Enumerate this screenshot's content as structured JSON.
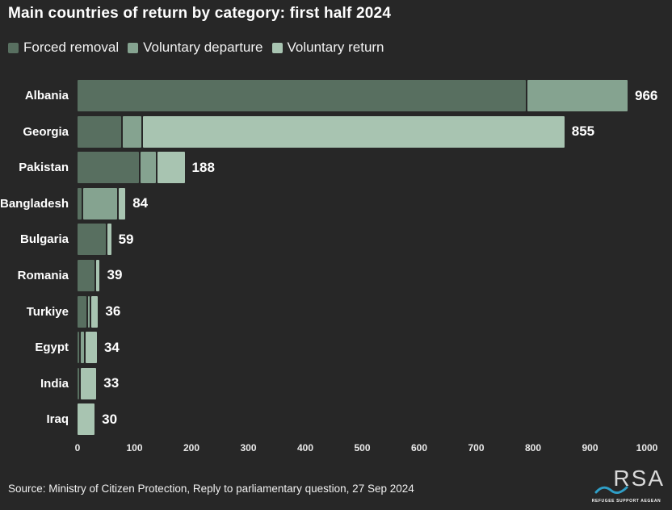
{
  "title": "Main countries of return by category: first half 2024",
  "legend": [
    {
      "label": "Forced removal",
      "color": "#586f60"
    },
    {
      "label": "Voluntary departure",
      "color": "#85a390"
    },
    {
      "label": "Voluntary return",
      "color": "#a8c4b1"
    }
  ],
  "chart_data": {
    "type": "bar",
    "orientation": "horizontal",
    "stacked": true,
    "title": "Main countries of return by category: first half 2024",
    "categories": [
      "Albania",
      "Georgia",
      "Pakistan",
      "Bangladesh",
      "Bulgaria",
      "Romania",
      "Turkiye",
      "Egypt",
      "India",
      "Iraq"
    ],
    "totals": [
      966,
      855,
      188,
      84,
      59,
      39,
      36,
      34,
      33,
      30
    ],
    "series": [
      {
        "name": "Forced removal",
        "values": [
          790,
          80,
          110,
          10,
          53,
          33,
          18,
          6,
          5,
          0
        ]
      },
      {
        "name": "Voluntary departure",
        "values": [
          176,
          35,
          30,
          62,
          0,
          0,
          6,
          8,
          0,
          0
        ]
      },
      {
        "name": "Voluntary return",
        "values": [
          0,
          740,
          48,
          12,
          6,
          6,
          12,
          20,
          28,
          30
        ]
      }
    ],
    "xlim": [
      0,
      1000
    ],
    "xticks": [
      0,
      100,
      200,
      300,
      400,
      500,
      600,
      700,
      800,
      900,
      1000
    ],
    "legend_position": "top",
    "grid": false,
    "background_color": "#272727",
    "series_colors": [
      "#586f60",
      "#85a390",
      "#a8c4b1"
    ]
  },
  "footer": {
    "source": "Source: Ministry of Citizen Protection, Reply to parliamentary question, 27 Sep 2024"
  },
  "logo": {
    "text": "RSA",
    "subtext": "REFUGEE SUPPORT AEGEAN",
    "wave_color": "#2f9fc7"
  }
}
